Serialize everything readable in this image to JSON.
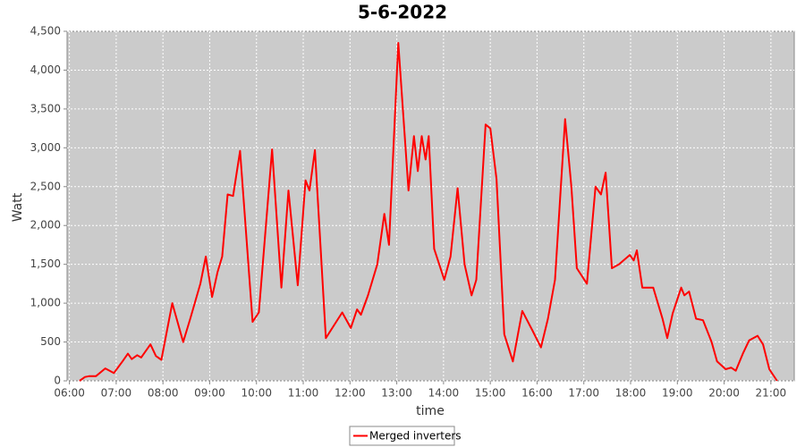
{
  "chart_data": {
    "type": "line",
    "title": "5-6-2022",
    "xlabel": "time",
    "ylabel": "Watt",
    "x": [
      "06:13",
      "06:20",
      "06:25",
      "06:34",
      "06:46",
      "06:57",
      "07:08",
      "07:15",
      "07:20",
      "07:27",
      "07:32",
      "07:44",
      "07:51",
      "07:58",
      "08:12",
      "08:26",
      "08:35",
      "08:48",
      "08:55",
      "09:03",
      "09:10",
      "09:16",
      "09:23",
      "09:30",
      "09:39",
      "09:55",
      "10:03",
      "10:20",
      "10:32",
      "10:41",
      "10:53",
      "11:03",
      "11:08",
      "11:15",
      "11:29",
      "11:50",
      "12:01",
      "12:09",
      "12:14",
      "12:23",
      "12:35",
      "12:44",
      "12:50",
      "13:02",
      "13:15",
      "13:22",
      "13:27",
      "13:32",
      "13:37",
      "13:41",
      "13:48",
      "14:01",
      "14:09",
      "14:18",
      "14:27",
      "14:36",
      "14:42",
      "14:54",
      "15:00",
      "15:08",
      "15:18",
      "15:29",
      "15:41",
      "15:54",
      "16:05",
      "16:14",
      "16:23",
      "16:36",
      "16:44",
      "16:51",
      "17:04",
      "17:15",
      "17:22",
      "17:28",
      "17:36",
      "17:45",
      "17:59",
      "18:04",
      "18:08",
      "18:15",
      "18:29",
      "18:41",
      "18:47",
      "18:54",
      "19:05",
      "19:09",
      "19:15",
      "19:24",
      "19:33",
      "19:44",
      "19:51",
      "20:02",
      "20:09",
      "20:15",
      "20:24",
      "20:32",
      "20:43",
      "20:50",
      "20:58",
      "21:08"
    ],
    "series": [
      {
        "name": "Merged inverters",
        "color": "#ff0000",
        "values": [
          0,
          50,
          60,
          60,
          160,
          100,
          250,
          350,
          280,
          330,
          300,
          470,
          320,
          270,
          1000,
          500,
          800,
          1250,
          1600,
          1080,
          1400,
          1600,
          2400,
          2380,
          2960,
          760,
          880,
          2980,
          1200,
          2450,
          1230,
          2580,
          2450,
          2970,
          550,
          880,
          680,
          920,
          850,
          1100,
          1500,
          2150,
          1750,
          4350,
          2450,
          3150,
          2700,
          3150,
          2850,
          3150,
          1700,
          1300,
          1600,
          2480,
          1500,
          1100,
          1300,
          3300,
          3250,
          2600,
          600,
          250,
          900,
          650,
          430,
          800,
          1300,
          3370,
          2500,
          1450,
          1250,
          2500,
          2400,
          2680,
          1450,
          1500,
          1620,
          1550,
          1680,
          1200,
          1200,
          800,
          550,
          870,
          1200,
          1100,
          1150,
          800,
          780,
          500,
          250,
          150,
          170,
          130,
          350,
          520,
          580,
          470,
          150,
          0
        ]
      }
    ],
    "xlim": [
      "05:57",
      "21:30"
    ],
    "xticks": [
      "06:00",
      "07:00",
      "08:00",
      "09:00",
      "10:00",
      "11:00",
      "12:00",
      "13:00",
      "14:00",
      "15:00",
      "16:00",
      "17:00",
      "18:00",
      "19:00",
      "20:00",
      "21:00"
    ],
    "ylim": [
      0,
      4500
    ],
    "yticks": [
      0,
      500,
      {
        "value": 1000,
        "label": "1,000"
      },
      {
        "value": 1500,
        "label": "1,500"
      },
      {
        "value": 2000,
        "label": "2,000"
      },
      {
        "value": 2500,
        "label": "2,500"
      },
      {
        "value": 3000,
        "label": "3,000"
      },
      {
        "value": 3500,
        "label": "3,500"
      },
      {
        "value": 4000,
        "label": "4,000"
      },
      {
        "value": 4500,
        "label": "4,500"
      }
    ],
    "grid": true,
    "legend": "bottom"
  }
}
